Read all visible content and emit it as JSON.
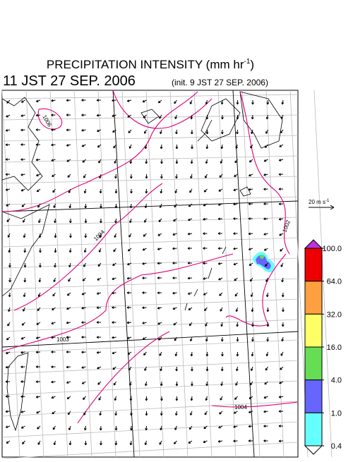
{
  "header": {
    "title": "PRECIPITATION INTENSITY (mm hr",
    "title_exponent": "-1",
    "title_close": ")",
    "valid_time": "11 JST 27 SEP. 2006",
    "init_time": "(init. 9 JST 27 SEP. 2006)"
  },
  "wind_scale": {
    "label": "20 m s",
    "exponent": "-1"
  },
  "contour_labels": [
    "1006",
    "1004",
    "1003",
    "1002",
    "1004"
  ],
  "colorbar": {
    "levels": [
      {
        "value": 100,
        "label": "100.0"
      },
      {
        "value": 64,
        "label": "64.0"
      },
      {
        "value": 32,
        "label": "32.0"
      },
      {
        "value": 16,
        "label": "16.0"
      },
      {
        "value": 4,
        "label": "4.0"
      },
      {
        "value": 1,
        "label": "1.0"
      },
      {
        "value": 0.4,
        "label": "0.4"
      }
    ],
    "colors": [
      "#ee0000",
      "#ffa040",
      "#ffff66",
      "#66dd55",
      "#6666ff",
      "#66ffff"
    ],
    "over_color": "#bb33dd",
    "under_color": "#ffffff"
  }
}
